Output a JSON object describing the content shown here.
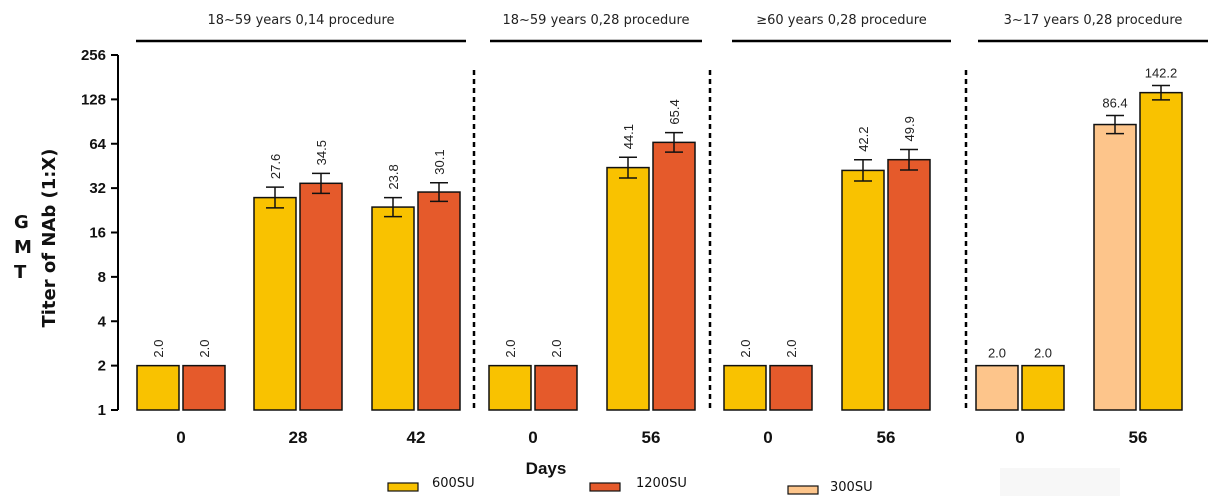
{
  "chart_data": {
    "type": "bar",
    "scale": "log2",
    "ylim": [
      1,
      256
    ],
    "yticks": [
      "1",
      "2",
      "4",
      "8",
      "16",
      "32",
      "64",
      "128",
      "256"
    ],
    "ylabel_visible": "GMT",
    "ylabel_occluded": "Titer of NAb (1:X)",
    "xlabel": "Days",
    "groups": [
      {
        "title": "18~59 years 0,14 procedure",
        "categories": [
          {
            "label": "0",
            "bars": [
              {
                "series": "600SU",
                "value": 2.0,
                "label": "2.0"
              },
              {
                "series": "1200SU",
                "value": 2.0,
                "label": "2.0"
              }
            ]
          },
          {
            "label": "28",
            "bars": [
              {
                "series": "600SU",
                "value": 27.6,
                "label": "27.6",
                "err": [
                  23.5,
                  32.5
                ]
              },
              {
                "series": "1200SU",
                "value": 34.5,
                "label": "34.5",
                "err": [
                  29.5,
                  40.3
                ]
              }
            ]
          },
          {
            "label": "42",
            "bars": [
              {
                "series": "600SU",
                "value": 23.8,
                "label": "23.8",
                "err": [
                  20.5,
                  27.6
                ]
              },
              {
                "series": "1200SU",
                "value": 30.1,
                "label": "30.1",
                "err": [
                  26.0,
                  34.8
                ]
              }
            ]
          }
        ]
      },
      {
        "title": "18~59 years 0,28 procedure",
        "categories": [
          {
            "label": "0",
            "bars": [
              {
                "series": "600SU",
                "value": 2.0,
                "label": "2.0"
              },
              {
                "series": "1200SU",
                "value": 2.0,
                "label": "2.0"
              }
            ]
          },
          {
            "label": "56",
            "bars": [
              {
                "series": "600SU",
                "value": 44.1,
                "label": "44.1",
                "err": [
                  37.5,
                  51.8
                ]
              },
              {
                "series": "1200SU",
                "value": 65.4,
                "label": "65.4",
                "err": [
                  56.2,
                  76.2
                ]
              }
            ]
          }
        ]
      },
      {
        "title": "≥60 years 0,28 procedure",
        "categories": [
          {
            "label": "0",
            "bars": [
              {
                "series": "600SU",
                "value": 2.0,
                "label": "2.0"
              },
              {
                "series": "1200SU",
                "value": 2.0,
                "label": "2.0"
              }
            ]
          },
          {
            "label": "56",
            "bars": [
              {
                "series": "600SU",
                "value": 42.2,
                "label": "42.2",
                "err": [
                  35.8,
                  49.8
                ]
              },
              {
                "series": "1200SU",
                "value": 49.9,
                "label": "49.9",
                "err": [
                  42.5,
                  58.5
                ]
              }
            ]
          }
        ]
      },
      {
        "title": "3~17 years 0,28 procedure",
        "categories": [
          {
            "label": "0",
            "bars": [
              {
                "series": "300SU",
                "value": 2.0,
                "label": "2.0"
              },
              {
                "series": "600SU",
                "value": 2.0,
                "label": "2.0"
              }
            ]
          },
          {
            "label": "56",
            "bars": [
              {
                "series": "300SU",
                "value": 86.4,
                "label": "86.4",
                "err": [
                  75.0,
                  99.5
                ]
              },
              {
                "series": "600SU",
                "value": 142.2,
                "label": "142.2",
                "err": [
                  127.0,
                  159.0
                ]
              }
            ]
          }
        ]
      }
    ],
    "legend": [
      {
        "name": "600SU",
        "color": "#F9C200"
      },
      {
        "name": "1200SU",
        "color": "#E55A2B"
      },
      {
        "name": "300SU",
        "color": "#FDC58B"
      }
    ],
    "legend_position": "bottom"
  }
}
